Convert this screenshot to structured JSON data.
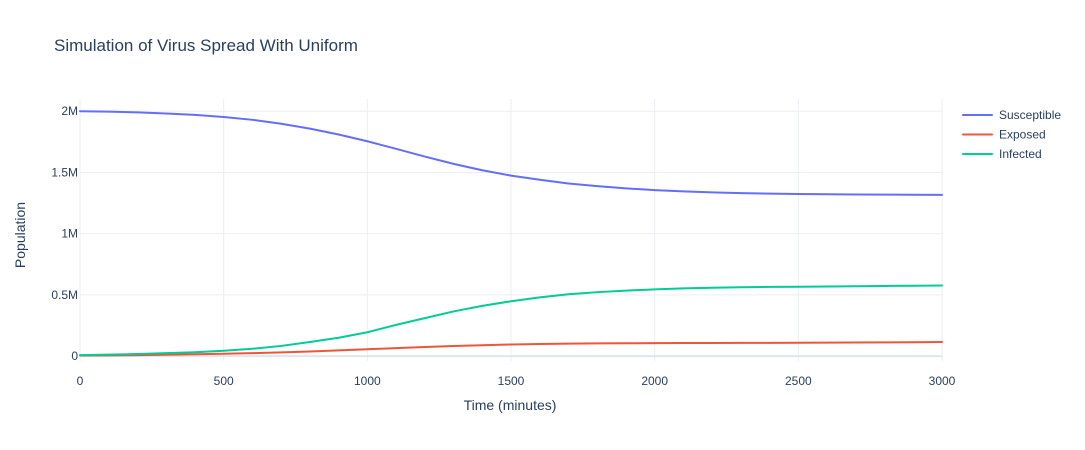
{
  "chart_data": {
    "type": "line",
    "title": "Simulation of Virus Spread With Uniform",
    "xlabel": "Time (minutes)",
    "ylabel": "Population",
    "xlim": [
      0,
      3000
    ],
    "ylim": [
      -40000,
      2100000
    ],
    "x_ticks": [
      {
        "value": 0,
        "label": "0"
      },
      {
        "value": 500,
        "label": "500"
      },
      {
        "value": 1000,
        "label": "1000"
      },
      {
        "value": 1500,
        "label": "1500"
      },
      {
        "value": 2000,
        "label": "2000"
      },
      {
        "value": 2500,
        "label": "2500"
      },
      {
        "value": 3000,
        "label": "3000"
      }
    ],
    "y_ticks": [
      {
        "value": 0,
        "label": "0"
      },
      {
        "value": 500000,
        "label": "0.5M"
      },
      {
        "value": 1000000,
        "label": "1M"
      },
      {
        "value": 1500000,
        "label": "1.5M"
      },
      {
        "value": 2000000,
        "label": "2M"
      }
    ],
    "grid": true,
    "legend_position": "top-right",
    "series": [
      {
        "name": "Susceptible",
        "color": "#636efa",
        "x": [
          0,
          100,
          200,
          300,
          400,
          500,
          600,
          700,
          800,
          900,
          1000,
          1100,
          1200,
          1300,
          1400,
          1500,
          1600,
          1700,
          1800,
          1900,
          2000,
          2100,
          2200,
          2300,
          2400,
          2500,
          2600,
          2700,
          2800,
          2900,
          3000
        ],
        "y": [
          2000000,
          1997000,
          1991000,
          1982000,
          1970000,
          1953000,
          1930000,
          1898000,
          1858000,
          1810000,
          1755000,
          1693000,
          1630000,
          1570000,
          1518000,
          1474000,
          1440000,
          1410000,
          1388000,
          1370000,
          1356000,
          1345000,
          1337000,
          1331000,
          1327000,
          1324000,
          1322000,
          1320000,
          1319000,
          1318000,
          1317000
        ]
      },
      {
        "name": "Exposed",
        "color": "#ef553b",
        "x": [
          0,
          100,
          200,
          300,
          400,
          500,
          600,
          700,
          800,
          900,
          1000,
          1100,
          1200,
          1300,
          1400,
          1500,
          1600,
          1700,
          1800,
          1900,
          2000,
          2100,
          2200,
          2300,
          2400,
          2500,
          2600,
          2700,
          2800,
          2900,
          3000
        ],
        "y": [
          5000,
          6000,
          8000,
          11000,
          15000,
          19000,
          24000,
          30000,
          38000,
          47000,
          56000,
          65000,
          74000,
          82000,
          89000,
          95000,
          99000,
          102000,
          104000,
          105000,
          106000,
          107000,
          107500,
          108000,
          108500,
          109000,
          110000,
          111000,
          112000,
          113000,
          115000
        ]
      },
      {
        "name": "Infected",
        "color": "#00cc96",
        "x": [
          0,
          100,
          200,
          300,
          400,
          500,
          600,
          700,
          800,
          900,
          1000,
          1100,
          1200,
          1300,
          1400,
          1500,
          1600,
          1700,
          1800,
          1900,
          2000,
          2100,
          2200,
          2300,
          2400,
          2500,
          2600,
          2700,
          2800,
          2900,
          3000
        ],
        "y": [
          8000,
          12000,
          17000,
          24000,
          32000,
          44000,
          60000,
          83000,
          115000,
          150000,
          195000,
          255000,
          310000,
          365000,
          410000,
          448000,
          480000,
          505000,
          522000,
          535000,
          545000,
          553000,
          558000,
          562000,
          565000,
          567000,
          569000,
          571000,
          573000,
          575000,
          577000
        ]
      }
    ]
  }
}
